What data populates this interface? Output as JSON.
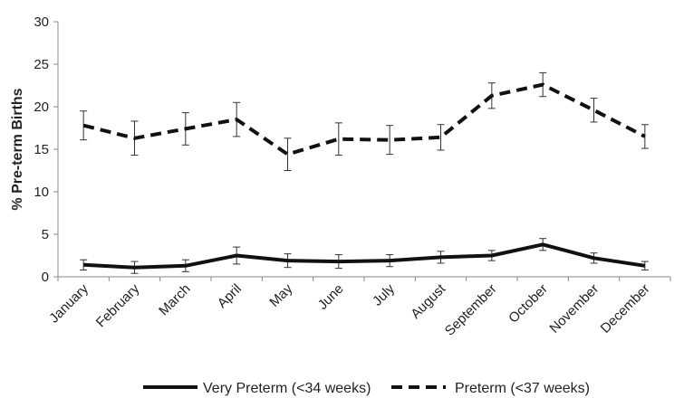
{
  "chart_data": {
    "type": "line",
    "title": "",
    "xlabel": "",
    "ylabel": "% Pre-term Births",
    "ylim": [
      0,
      30
    ],
    "yticks": [
      0,
      5,
      10,
      15,
      20,
      25,
      30
    ],
    "grid": false,
    "legend_position": "bottom",
    "categories": [
      "January",
      "February",
      "March",
      "April",
      "May",
      "June",
      "July",
      "August",
      "September",
      "October",
      "November",
      "December"
    ],
    "series": [
      {
        "name": "Very Preterm (<34 weeks)",
        "style": "solid",
        "color": "#111111",
        "values": [
          1.4,
          1.1,
          1.3,
          2.5,
          1.9,
          1.8,
          1.9,
          2.3,
          2.5,
          3.8,
          2.2,
          1.3
        ],
        "error": [
          0.6,
          0.7,
          0.7,
          1.0,
          0.8,
          0.8,
          0.7,
          0.7,
          0.6,
          0.7,
          0.6,
          0.5
        ]
      },
      {
        "name": "Preterm (<37 weeks)",
        "style": "dashed",
        "color": "#111111",
        "values": [
          17.8,
          16.3,
          17.4,
          18.5,
          14.4,
          16.2,
          16.1,
          16.4,
          21.3,
          22.6,
          19.6,
          16.5
        ],
        "error": [
          1.7,
          2.0,
          1.9,
          2.0,
          1.9,
          1.9,
          1.7,
          1.5,
          1.5,
          1.4,
          1.4,
          1.4
        ]
      }
    ]
  }
}
